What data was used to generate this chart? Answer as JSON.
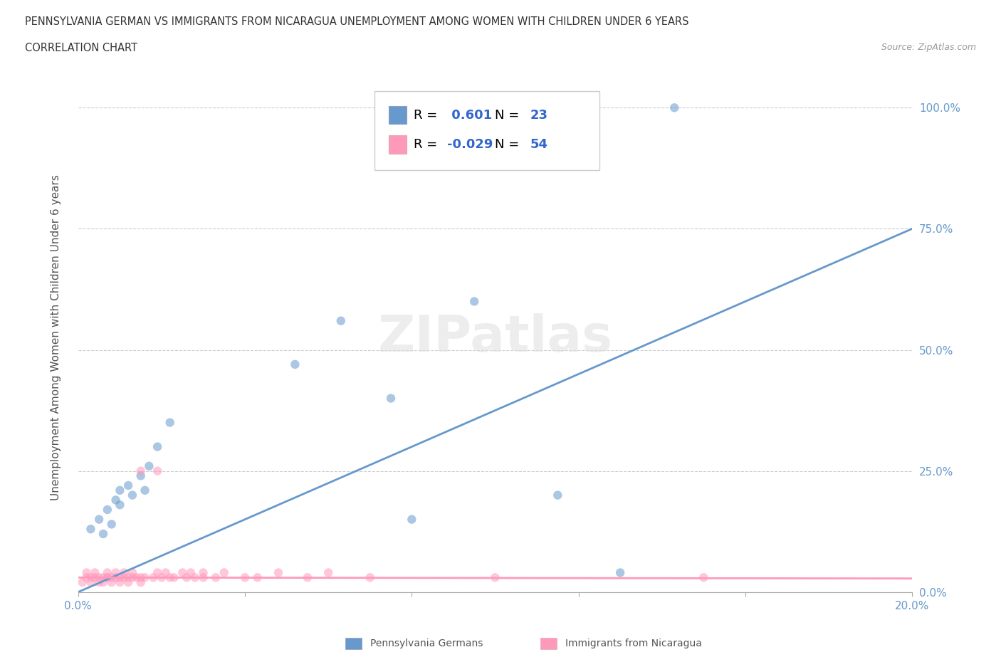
{
  "title_line1": "PENNSYLVANIA GERMAN VS IMMIGRANTS FROM NICARAGUA UNEMPLOYMENT AMONG WOMEN WITH CHILDREN UNDER 6 YEARS",
  "title_line2": "CORRELATION CHART",
  "source": "Source: ZipAtlas.com",
  "ylabel": "Unemployment Among Women with Children Under 6 years",
  "xlim": [
    0.0,
    0.2
  ],
  "ylim": [
    0.0,
    1.05
  ],
  "ytick_labels": [
    "0.0%",
    "25.0%",
    "50.0%",
    "75.0%",
    "100.0%"
  ],
  "ytick_vals": [
    0.0,
    0.25,
    0.5,
    0.75,
    1.0
  ],
  "grid_color": "#cccccc",
  "bg_color": "#ffffff",
  "blue_color": "#6699cc",
  "pink_color": "#ff99bb",
  "blue_scatter": [
    [
      0.003,
      0.13
    ],
    [
      0.005,
      0.15
    ],
    [
      0.006,
      0.12
    ],
    [
      0.007,
      0.17
    ],
    [
      0.008,
      0.14
    ],
    [
      0.009,
      0.19
    ],
    [
      0.01,
      0.21
    ],
    [
      0.01,
      0.18
    ],
    [
      0.012,
      0.22
    ],
    [
      0.013,
      0.2
    ],
    [
      0.015,
      0.24
    ],
    [
      0.016,
      0.21
    ],
    [
      0.017,
      0.26
    ],
    [
      0.019,
      0.3
    ],
    [
      0.022,
      0.35
    ],
    [
      0.052,
      0.47
    ],
    [
      0.063,
      0.56
    ],
    [
      0.075,
      0.4
    ],
    [
      0.08,
      0.15
    ],
    [
      0.095,
      0.6
    ],
    [
      0.115,
      0.2
    ],
    [
      0.13,
      0.04
    ],
    [
      0.143,
      1.0
    ]
  ],
  "pink_scatter": [
    [
      0.001,
      0.02
    ],
    [
      0.002,
      0.03
    ],
    [
      0.002,
      0.04
    ],
    [
      0.003,
      0.02
    ],
    [
      0.003,
      0.03
    ],
    [
      0.004,
      0.03
    ],
    [
      0.004,
      0.04
    ],
    [
      0.005,
      0.02
    ],
    [
      0.005,
      0.03
    ],
    [
      0.006,
      0.03
    ],
    [
      0.006,
      0.02
    ],
    [
      0.007,
      0.03
    ],
    [
      0.007,
      0.04
    ],
    [
      0.007,
      0.03
    ],
    [
      0.008,
      0.02
    ],
    [
      0.008,
      0.03
    ],
    [
      0.009,
      0.03
    ],
    [
      0.009,
      0.04
    ],
    [
      0.01,
      0.03
    ],
    [
      0.01,
      0.02
    ],
    [
      0.011,
      0.03
    ],
    [
      0.011,
      0.04
    ],
    [
      0.012,
      0.03
    ],
    [
      0.012,
      0.02
    ],
    [
      0.013,
      0.04
    ],
    [
      0.013,
      0.03
    ],
    [
      0.014,
      0.03
    ],
    [
      0.015,
      0.02
    ],
    [
      0.015,
      0.03
    ],
    [
      0.015,
      0.25
    ],
    [
      0.016,
      0.03
    ],
    [
      0.018,
      0.03
    ],
    [
      0.019,
      0.04
    ],
    [
      0.019,
      0.25
    ],
    [
      0.02,
      0.03
    ],
    [
      0.021,
      0.04
    ],
    [
      0.022,
      0.03
    ],
    [
      0.023,
      0.03
    ],
    [
      0.025,
      0.04
    ],
    [
      0.026,
      0.03
    ],
    [
      0.027,
      0.04
    ],
    [
      0.028,
      0.03
    ],
    [
      0.03,
      0.04
    ],
    [
      0.03,
      0.03
    ],
    [
      0.033,
      0.03
    ],
    [
      0.035,
      0.04
    ],
    [
      0.04,
      0.03
    ],
    [
      0.043,
      0.03
    ],
    [
      0.048,
      0.04
    ],
    [
      0.055,
      0.03
    ],
    [
      0.06,
      0.04
    ],
    [
      0.07,
      0.03
    ],
    [
      0.1,
      0.03
    ],
    [
      0.15,
      0.03
    ]
  ],
  "blue_R": 0.601,
  "blue_N": 23,
  "pink_R": -0.029,
  "pink_N": 54,
  "blue_line_x": [
    0.0,
    0.2
  ],
  "blue_line_y": [
    0.0,
    0.75
  ],
  "pink_line_x": [
    0.0,
    0.2
  ],
  "pink_line_y": [
    0.03,
    0.028
  ],
  "marker_size": 80,
  "marker_alpha": 0.55,
  "line_width": 2.0,
  "stat_color": "#3366cc",
  "tick_color": "#6699cc",
  "label_color": "#555555",
  "bottom_legend_names": [
    "Pennsylvania Germans",
    "Immigrants from Nicaragua"
  ]
}
